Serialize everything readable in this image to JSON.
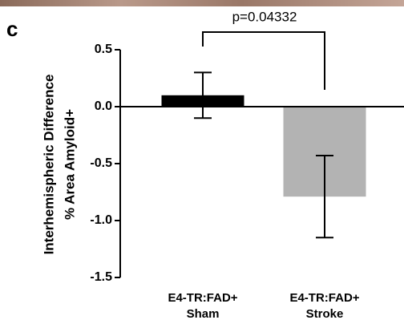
{
  "chart_data": {
    "type": "bar",
    "panel_label": "c",
    "ylabel": [
      "Interhemispheric Difference",
      "% Area Amyloid+"
    ],
    "categories": [
      [
        "E4-TR:FAD+",
        "Sham"
      ],
      [
        "E4-TR:FAD+",
        "Stroke"
      ]
    ],
    "values": [
      0.1,
      -0.79
    ],
    "errors": [
      0.2,
      0.36
    ],
    "colors": [
      "#000000",
      "#b3b3b3"
    ],
    "ylim": [
      -1.5,
      0.5
    ],
    "yticks": [
      {
        "value": 0.5,
        "label": "0.5"
      },
      {
        "value": 0,
        "label": "0.0"
      },
      {
        "value": -0.5,
        "label": "-0.5"
      },
      {
        "value": -1,
        "label": "-1.0"
      },
      {
        "value": -1.5,
        "label": "-1.5"
      }
    ],
    "annotation": "p=0.04332"
  }
}
